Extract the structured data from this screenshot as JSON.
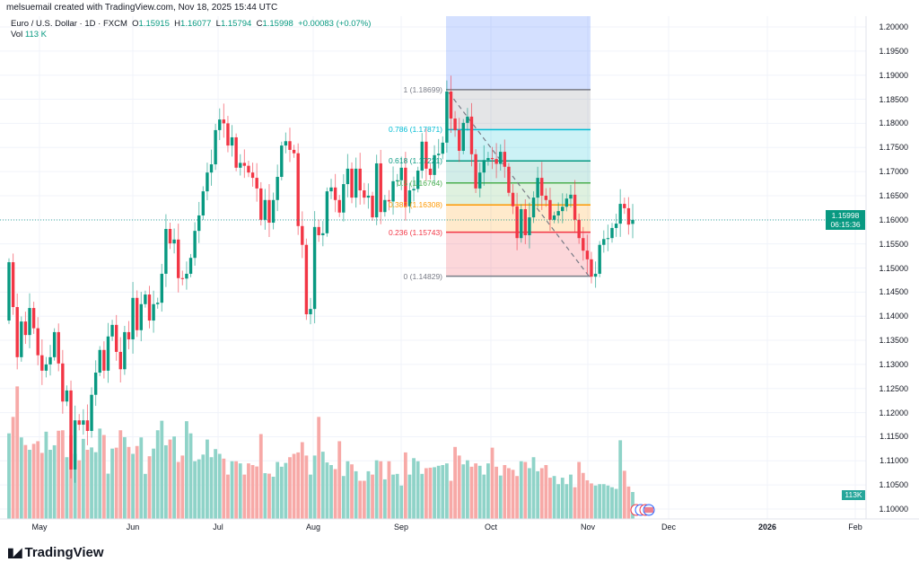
{
  "header": {
    "credit": "melsuemail created with TradingView.com, Nov 18, 2025 15:44 UTC"
  },
  "legend": {
    "symbol": "Euro / U.S. Dollar · 1D · FXCM",
    "o_label": "O",
    "o": "1.15915",
    "h_label": "H",
    "h": "1.16077",
    "l_label": "L",
    "l": "1.15794",
    "c_label": "C",
    "c": "1.15998",
    "change": "+0.00083 (+0.07%)",
    "vol_label": "Vol",
    "vol": "113 K"
  },
  "price_tag": {
    "price": "1.15998",
    "countdown": "06:15:36"
  },
  "volume_tag": "113K",
  "brand": "TradingView",
  "colors": {
    "up": "#089981",
    "down": "#f23645",
    "vol_up": "#8fd3c8",
    "vol_down": "#f7a9a7"
  },
  "chart_data": {
    "type": "candlestick",
    "title": "Euro / U.S. Dollar · 1D · FXCM",
    "ylim": [
      1.1,
      1.2
    ],
    "y_ticks": [
      "1.20000",
      "1.19500",
      "1.19000",
      "1.18500",
      "1.18000",
      "1.17500",
      "1.17000",
      "1.16500",
      "1.16000",
      "1.15500",
      "1.15000",
      "1.14500",
      "1.14000",
      "1.13500",
      "1.13000",
      "1.12500",
      "1.12000",
      "1.11500",
      "1.11000",
      "1.10500",
      "1.10000"
    ],
    "x_ticks": [
      "May",
      "Jun",
      "Jul",
      "Aug",
      "Sep",
      "Oct",
      "Nov",
      "Dec",
      "2026",
      "Feb"
    ],
    "first_open": 1.1391,
    "last_open": 1.15915,
    "closes": [
      1.1512,
      1.1419,
      1.1315,
      1.1389,
      1.1361,
      1.1417,
      1.1375,
      1.1319,
      1.1287,
      1.13,
      1.1315,
      1.1367,
      1.1302,
      1.1223,
      1.1246,
      1.1082,
      1.1184,
      1.1175,
      1.1184,
      1.1162,
      1.1237,
      1.1283,
      1.133,
      1.1287,
      1.1358,
      1.1382,
      1.1326,
      1.129,
      1.1367,
      1.1352,
      1.1438,
      1.1371,
      1.1425,
      1.1445,
      1.1391,
      1.1425,
      1.1428,
      1.1488,
      1.1581,
      1.1551,
      1.1559,
      1.1479,
      1.1478,
      1.1488,
      1.1521,
      1.1577,
      1.1609,
      1.1659,
      1.1698,
      1.1715,
      1.1786,
      1.1808,
      1.18,
      1.1754,
      1.1771,
      1.1708,
      1.1718,
      1.1712,
      1.1698,
      1.1687,
      1.1665,
      1.16,
      1.1641,
      1.1594,
      1.1641,
      1.1689,
      1.1754,
      1.1763,
      1.1745,
      1.1738,
      1.1587,
      1.1548,
      1.1404,
      1.1415,
      1.1585,
      1.1568,
      1.1572,
      1.1659,
      1.1667,
      1.1641,
      1.1615,
      1.1674,
      1.1706,
      1.1646,
      1.1706,
      1.1661,
      1.1646,
      1.165,
      1.1605,
      1.1717,
      1.1616,
      1.1641,
      1.1638,
      1.168,
      1.1682,
      1.1708,
      1.1628,
      1.1661,
      1.1664,
      1.1702,
      1.1762,
      1.1706,
      1.1693,
      1.1734,
      1.1737,
      1.176,
      1.1866,
      1.181,
      1.1786,
      1.1743,
      1.1801,
      1.1814,
      1.1736,
      1.1665,
      1.1698,
      1.1724,
      1.1728,
      1.1726,
      1.1716,
      1.1741,
      1.171,
      1.1656,
      1.1628,
      1.1562,
      1.1622,
      1.1568,
      1.1605,
      1.1646,
      1.1687,
      1.165,
      1.1641,
      1.16,
      1.1609,
      1.1618,
      1.1627,
      1.1644,
      1.1652,
      1.16,
      1.1562,
      1.1536,
      1.1518,
      1.1482,
      1.1488,
      1.1548,
      1.156,
      1.1562,
      1.1583,
      1.1592,
      1.1633,
      1.1624,
      1.159,
      1.15998
    ],
    "volume_k": [
      359,
      428,
      556,
      342,
      310,
      290,
      315,
      326,
      277,
      366,
      290,
      309,
      370,
      372,
      259,
      351,
      273,
      246,
      336,
      290,
      300,
      280,
      379,
      352,
      190,
      295,
      299,
      372,
      343,
      302,
      273,
      306,
      342,
      189,
      263,
      295,
      372,
      412,
      309,
      333,
      346,
      239,
      266,
      410,
      359,
      242,
      250,
      270,
      333,
      259,
      293,
      273,
      253,
      186,
      242,
      242,
      233,
      186,
      233,
      226,
      220,
      356,
      192,
      190,
      177,
      239,
      219,
      235,
      259,
      273,
      279,
      322,
      266,
      186,
      266,
      428,
      282,
      237,
      226,
      209,
      326,
      180,
      242,
      229,
      200,
      160,
      160,
      200,
      186,
      246,
      242,
      166,
      242,
      186,
      189,
      140,
      279,
      186,
      255,
      242,
      189,
      213,
      215,
      217,
      223,
      226,
      233,
      160,
      302,
      266,
      229,
      246,
      219,
      233,
      223,
      186,
      233,
      299,
      219,
      182,
      226,
      213,
      206,
      180,
      242,
      239,
      213,
      259,
      200,
      213,
      226,
      173,
      180,
      146,
      173,
      146,
      186,
      133,
      239,
      193,
      162,
      149,
      140,
      146,
      146,
      140,
      133,
      126,
      330,
      202,
      136,
      113
    ],
    "fibonacci": {
      "levels": [
        {
          "ratio": "1",
          "price": "1.18699",
          "value": 1.18699,
          "color": "#787b86",
          "fill": "rgba(120,123,134,0.2)"
        },
        {
          "ratio": "0.786",
          "price": "1.17871",
          "value": 1.17871,
          "color": "#00bcd4",
          "fill": "rgba(0,188,212,0.2)"
        },
        {
          "ratio": "0.618",
          "price": "1.17221",
          "value": 1.17221,
          "color": "#089981",
          "fill": "rgba(8,153,129,0.18)"
        },
        {
          "ratio": "0.5",
          "price": "1.16764",
          "value": 1.16764,
          "color": "#4caf50",
          "fill": "rgba(76,175,80,0.18)"
        },
        {
          "ratio": "0.382",
          "price": "1.16308",
          "value": 1.16308,
          "color": "#ff9800",
          "fill": "rgba(255,152,0,0.2)"
        },
        {
          "ratio": "0.236",
          "price": "1.15743",
          "value": 1.15743,
          "color": "#f23645",
          "fill": "rgba(242,54,69,0.2)"
        },
        {
          "ratio": "0",
          "price": "1.14829",
          "value": 1.14829,
          "color": "#787b86",
          "fill": null
        }
      ],
      "top_fill": "rgba(41,98,255,0.2)"
    }
  }
}
